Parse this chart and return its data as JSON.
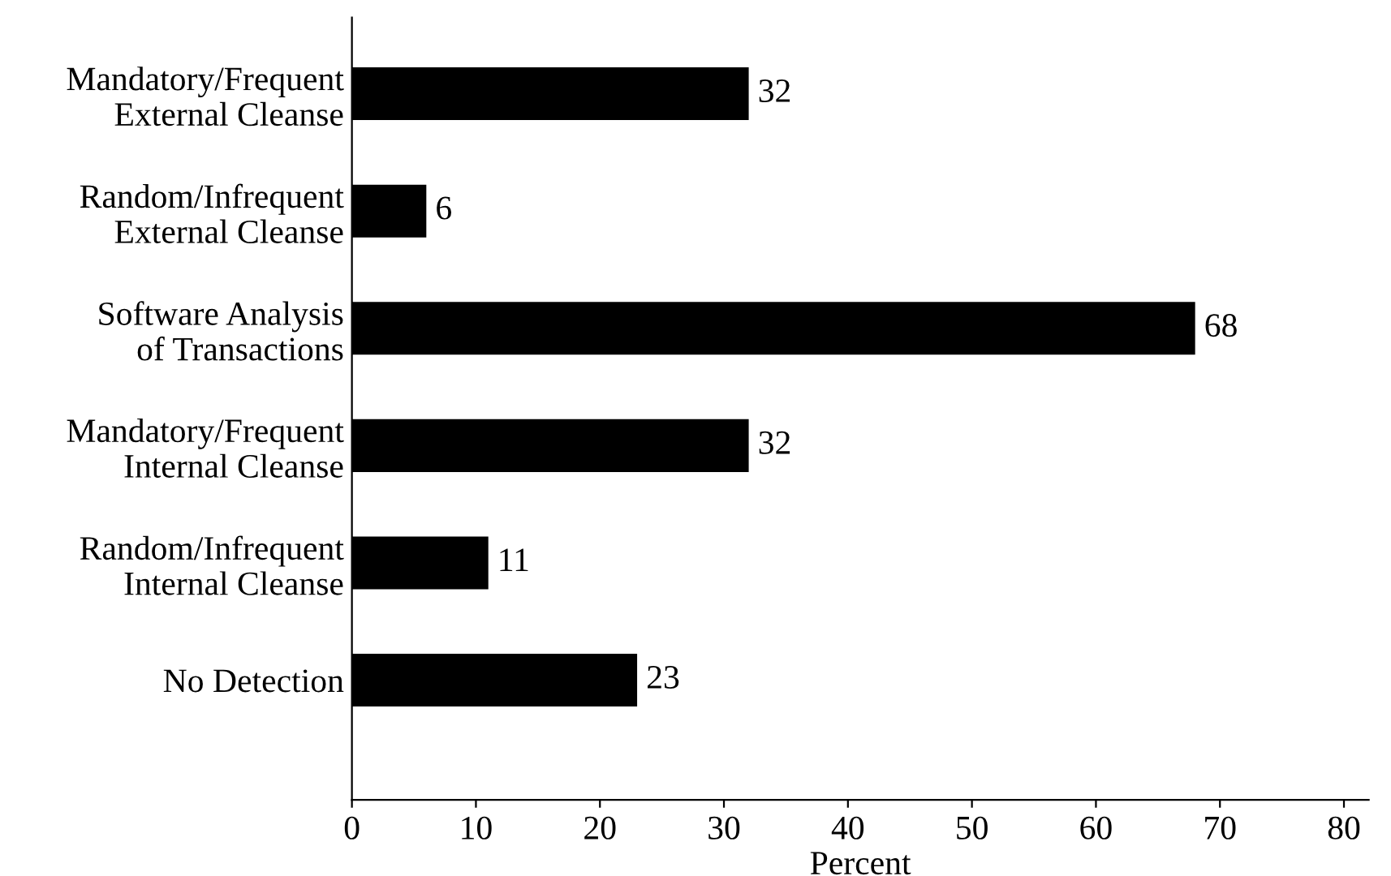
{
  "chart_data": {
    "type": "bar",
    "orientation": "horizontal",
    "xlabel": "Percent",
    "categories": [
      "Mandatory/Frequent\nExternal Cleanse",
      "Random/Infrequent\nExternal Cleanse",
      "Software Analysis\nof Transactions",
      "Mandatory/Frequent\nInternal Cleanse",
      "Random/Infrequent\nInternal Cleanse",
      "No Detection"
    ],
    "values": [
      32,
      6,
      68,
      32,
      11,
      23
    ],
    "color": "#000000",
    "data_labels": true,
    "xlim": [
      0,
      82
    ],
    "xticks": [
      0,
      10,
      20,
      30,
      40,
      50,
      60,
      70,
      80
    ],
    "grid": false,
    "legend": false
  }
}
